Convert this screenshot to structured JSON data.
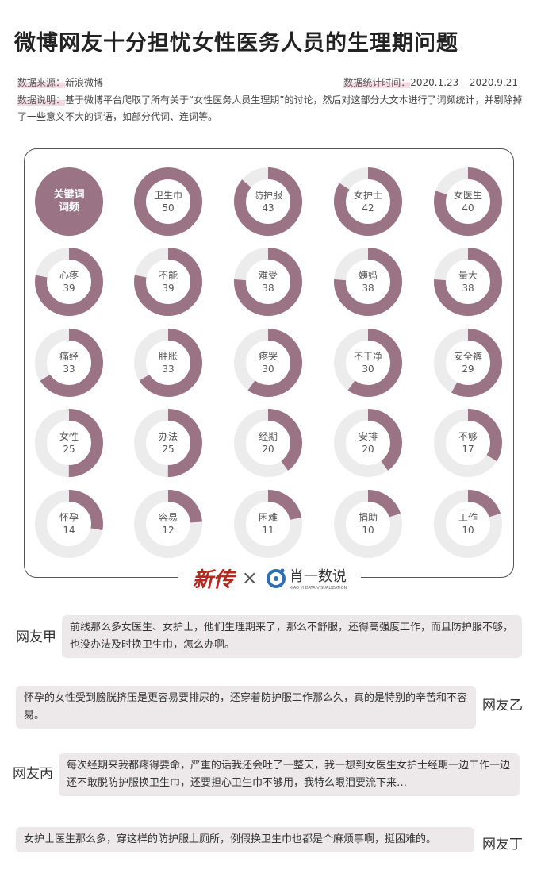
{
  "title": "微博网友十分担忧女性医务人员的生理期问题",
  "source": {
    "label": "数据来源：",
    "value": "新浪微博"
  },
  "period": {
    "label": "数据统计时间：",
    "value": "2020.1.23 – 2020.9.21"
  },
  "description": {
    "label": "数据说明：",
    "value": "基于微博平台爬取了所有关于“女性医务人员生理期”的讨论，然后对这部分大文本进行了词频统计，并剔除掉了一些意义不大的词语，如部分代词、连词等。"
  },
  "colors": {
    "fill": "#9a7385",
    "track": "#ececec"
  },
  "chart_data": {
    "type": "donut-grid",
    "header": {
      "line1": "关键词",
      "line2": "词频"
    },
    "max": 50,
    "items": [
      {
        "word": "卫生巾",
        "value": 50
      },
      {
        "word": "防护服",
        "value": 43
      },
      {
        "word": "女护士",
        "value": 42
      },
      {
        "word": "女医生",
        "value": 40
      },
      {
        "word": "心疼",
        "value": 39
      },
      {
        "word": "不能",
        "value": 39
      },
      {
        "word": "难受",
        "value": 38
      },
      {
        "word": "姨妈",
        "value": 38
      },
      {
        "word": "量大",
        "value": 38
      },
      {
        "word": "痛经",
        "value": 33
      },
      {
        "word": "肿胀",
        "value": 33
      },
      {
        "word": "疼哭",
        "value": 30
      },
      {
        "word": "不干净",
        "value": 30
      },
      {
        "word": "安全裤",
        "value": 29
      },
      {
        "word": "女性",
        "value": 25
      },
      {
        "word": "办法",
        "value": 25
      },
      {
        "word": "经期",
        "value": 20
      },
      {
        "word": "安排",
        "value": 20
      },
      {
        "word": "不够",
        "value": 17
      },
      {
        "word": "怀孕",
        "value": 14
      },
      {
        "word": "容易",
        "value": 12
      },
      {
        "word": "困难",
        "value": 11
      },
      {
        "word": "捐助",
        "value": 10
      },
      {
        "word": "工作",
        "value": 10
      }
    ]
  },
  "logos": {
    "left": "新传",
    "times": "×",
    "right": "肖一数说",
    "right_sub": "XIAO YI DATA VISUALIZATION"
  },
  "comments": [
    {
      "name": "网友甲",
      "text": "前线那么多女医生、女护士，他们生理期来了，那么不舒服，还得高强度工作，而且防护服不够，也没办法及时换卫生巾，怎么办啊。"
    },
    {
      "name": "网友乙",
      "text": "怀孕的女性受到膀胱挤压是更容易要排尿的，还穿着防护服工作那么久，真的是特别的辛苦和不容易。"
    },
    {
      "name": "网友丙",
      "text": "每次经期来我都疼得要命，严重的话我还会吐了一整天，我一想到女医生女护士经期一边工作一边还不敢脱防护服换卫生巾，还要担心卫生巾不够用，我特么眼泪要流下来…"
    },
    {
      "name": "网友丁",
      "text": "女护士医生那么多，穿这样的防护服上厕所，例假换卫生巾也都是个麻烦事啊，挺困难的。"
    }
  ]
}
